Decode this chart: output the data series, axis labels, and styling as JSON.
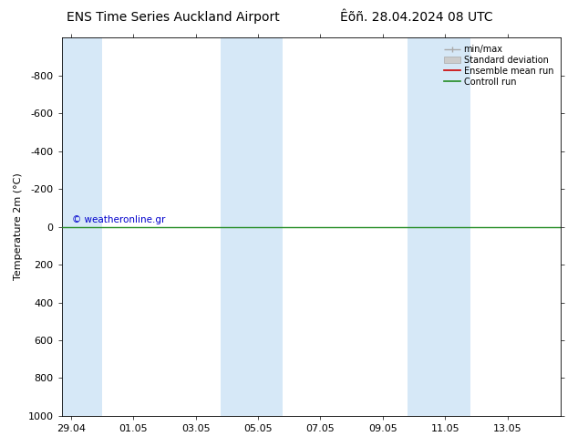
{
  "title_left": "ENS Time Series Auckland Airport",
  "title_right": "Êõñ. 28.04.2024 08 UTC",
  "ylabel": "Temperature 2m (°C)",
  "ylim": [
    -1000,
    1000
  ],
  "yticks": [
    -800,
    -600,
    -400,
    -200,
    0,
    200,
    400,
    600,
    800,
    1000
  ],
  "xtick_labels": [
    "29.04",
    "01.05",
    "03.05",
    "05.05",
    "07.05",
    "09.05",
    "11.05",
    "13.05"
  ],
  "background_color": "#ffffff",
  "plot_bg_color": "#ffffff",
  "band_color": "#d6e8f7",
  "green_line_y": 0,
  "green_line_color": "#228b22",
  "red_line_color": "#cc0000",
  "copyright_text": "© weatheronline.gr",
  "copyright_color": "#0000cc",
  "legend_entries": [
    "min/max",
    "Standard deviation",
    "Ensemble mean run",
    "Controll run"
  ],
  "title_fontsize": 10,
  "axis_fontsize": 8,
  "tick_fontsize": 8
}
